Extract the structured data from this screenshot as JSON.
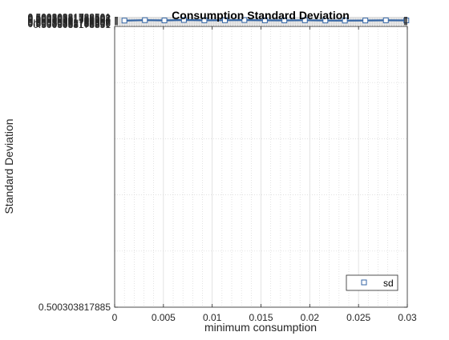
{
  "chart_data": {
    "type": "line",
    "title": "Consumption Standard Deviation",
    "xlabel": "minimum consumption",
    "ylabel": "Standard Deviation",
    "xlim": [
      0,
      0.03
    ],
    "ylim": [
      0.5003038178885,
      0.50030381788512
    ],
    "x_ticks": [
      {
        "value": 0,
        "label": "0"
      },
      {
        "value": 0.005,
        "label": "0.005"
      },
      {
        "value": 0.01,
        "label": "0.01"
      },
      {
        "value": 0.015,
        "label": "0.015"
      },
      {
        "value": 0.02,
        "label": "0.02"
      },
      {
        "value": 0.025,
        "label": "0.025"
      },
      {
        "value": 0.03,
        "label": "0.03"
      }
    ],
    "y_ticks": [
      {
        "value": 0.5003038178885,
        "label": "0.500303817885"
      },
      {
        "value": 0.50030381788501,
        "label": "0.50030381788501"
      },
      {
        "value": 0.50030381788502,
        "label": "0.50030381788502"
      },
      {
        "value": 0.50030381788503,
        "label": "0.50030381788503"
      },
      {
        "value": 0.50030381788504,
        "label": "0.50030381788504"
      },
      {
        "value": 0.50030381788505,
        "label": "0.50030381788505"
      },
      {
        "value": 0.50030381788506,
        "label": "0.50030381788506"
      },
      {
        "value": 0.50030381788507,
        "label": "0.50030381788507"
      },
      {
        "value": 0.50030381788508,
        "label": "0.50030381788508"
      },
      {
        "value": 0.50030381788509,
        "label": "0.50030381788509"
      },
      {
        "value": 0.5003038178851,
        "label": "0.5003038178851"
      }
    ],
    "grid": true,
    "minor_grid": true,
    "legend_position": "bottom-right",
    "series": [
      {
        "name": "sd",
        "color": "#3465a4",
        "marker": "square",
        "x": [
          0.001,
          0.0031,
          0.0051,
          0.0071,
          0.0092,
          0.0113,
          0.0133,
          0.0154,
          0.0174,
          0.0195,
          0.0216,
          0.0236,
          0.0257,
          0.0278,
          0.0299
        ],
        "y": [
          0.50030381788505,
          0.500303817885045,
          0.500303817885048,
          0.500303817885043,
          0.500303817885047,
          0.500303817885046,
          0.500303817885044,
          0.500303817885047,
          0.500303817885048,
          0.500303817885046,
          0.500303817885049,
          0.50030381788505,
          0.500303817885049,
          0.500303817885047,
          0.500303817885048
        ]
      }
    ]
  }
}
